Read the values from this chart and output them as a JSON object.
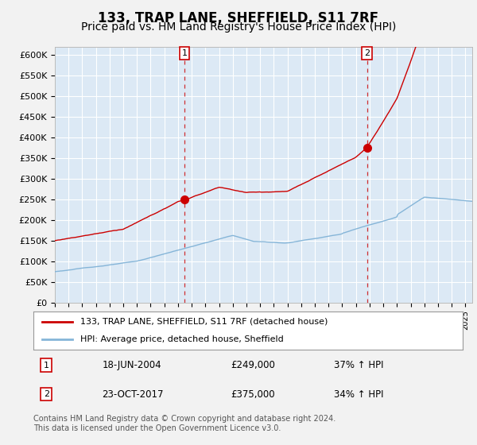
{
  "title": "133, TRAP LANE, SHEFFIELD, S11 7RF",
  "subtitle": "Price paid vs. HM Land Registry's House Price Index (HPI)",
  "title_fontsize": 12,
  "subtitle_fontsize": 10,
  "line_color_red": "#cc0000",
  "line_color_blue": "#85b5d8",
  "plot_bg_color": "#dce9f5",
  "fig_bg_color": "#f2f2f2",
  "grid_color": "#ffffff",
  "ylim": [
    0,
    620000
  ],
  "yticks": [
    0,
    50000,
    100000,
    150000,
    200000,
    250000,
    300000,
    350000,
    400000,
    450000,
    500000,
    550000,
    600000
  ],
  "ytick_labels": [
    "£0",
    "£50K",
    "£100K",
    "£150K",
    "£200K",
    "£250K",
    "£300K",
    "£350K",
    "£400K",
    "£450K",
    "£500K",
    "£550K",
    "£600K"
  ],
  "sale1_year": 2004.46,
  "sale1_price": 249000,
  "sale2_year": 2017.81,
  "sale2_price": 375000,
  "legend_red_label": "133, TRAP LANE, SHEFFIELD, S11 7RF (detached house)",
  "legend_blue_label": "HPI: Average price, detached house, Sheffield",
  "ann1_date": "18-JUN-2004",
  "ann1_price": "£249,000",
  "ann1_hpi": "37% ↑ HPI",
  "ann2_date": "23-OCT-2017",
  "ann2_price": "£375,000",
  "ann2_hpi": "34% ↑ HPI",
  "footer": "Contains HM Land Registry data © Crown copyright and database right 2024.\nThis data is licensed under the Open Government Licence v3.0.",
  "xmin": 1995,
  "xmax": 2025.5
}
